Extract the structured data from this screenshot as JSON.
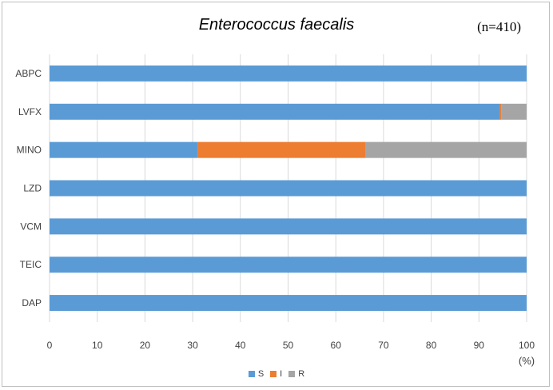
{
  "chart_data": {
    "type": "bar",
    "orientation": "horizontal",
    "stacked": true,
    "title": "Enterococcus faecalis",
    "annotation": "(n=410)",
    "categories": [
      "ABPC",
      "LVFX",
      "MINO",
      "LZD",
      "VCM",
      "TEIC",
      "DAP"
    ],
    "series": [
      {
        "name": "S",
        "color": "#5b9bd5",
        "values": [
          100,
          94.4,
          31.0,
          100,
          100,
          100,
          100
        ]
      },
      {
        "name": "I",
        "color": "#ed7d31",
        "values": [
          0,
          0.3,
          35.3,
          0,
          0,
          0,
          0
        ]
      },
      {
        "name": "R",
        "color": "#a5a5a5",
        "values": [
          0,
          5.3,
          33.7,
          0,
          0,
          0,
          0
        ]
      }
    ],
    "xlim": [
      0,
      100
    ],
    "xticks": [
      "0",
      "10",
      "20",
      "30",
      "40",
      "50",
      "60",
      "70",
      "80",
      "90",
      "100"
    ],
    "xunit": "(%)",
    "grid": true,
    "legend_position": "bottom"
  }
}
